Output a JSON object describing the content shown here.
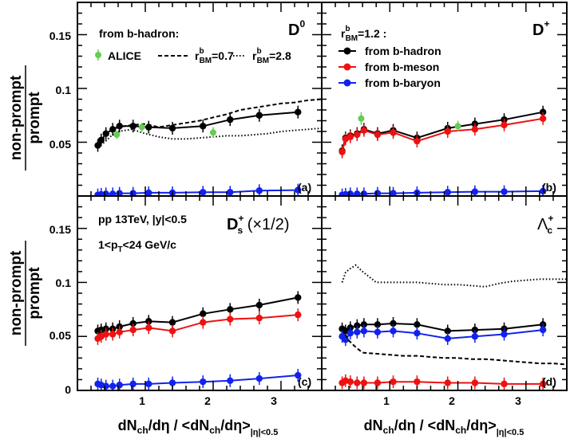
{
  "figure": {
    "ylabel_top": "non-prompt",
    "ylabel_bottom": "prompt",
    "xlabel": {
      "a": "dN",
      "a_sub": "ch",
      "b": "/dη / <dN",
      "b_sub": "ch",
      "c": "/dη>",
      "c_sub": "|η|<0.5"
    },
    "x_ticks": [
      "1",
      "2",
      "3"
    ],
    "y_ticks": [
      "0.05",
      "0.1",
      "0.15"
    ],
    "y_tick_zero": "0"
  },
  "colors": {
    "hadron": "#000000",
    "meson": "#ee1111",
    "baryon": "#1122ee",
    "alice": "#66cc55"
  },
  "legends": {
    "from_b_hadron_title": "from b-hadron:",
    "alice": "ALICE",
    "rbm07": {
      "r": "r",
      "sup": "b",
      "sub": "BM",
      "val": "=0.7"
    },
    "rbm28": {
      "r": "r",
      "sup": "b",
      "sub": "BM",
      "val": "=2.8"
    },
    "rbm12": {
      "r": "r",
      "sup": "b",
      "sub": "BM",
      "val": "=1.2 :"
    },
    "hadron": "from b-hadron",
    "meson": "from b-meson",
    "baryon": "from b-baryon",
    "pp_line": "pp 13TeV, |y|<0.5",
    "pt_line": {
      "a": "1<p",
      "sub": "T",
      "b": "<24 GeV/c"
    }
  },
  "panel_titles": {
    "a": {
      "main": "D",
      "sup": "0"
    },
    "b": {
      "main": "D",
      "sup": "+"
    },
    "c": {
      "main": "D",
      "sup": "+",
      "sub": "s",
      "extra": " (×1/2)"
    },
    "d": {
      "main": "Λ",
      "sup": "+",
      "sub": "c"
    }
  },
  "panel_tags": {
    "a": "(a)",
    "b": "(b)",
    "c": "(c)",
    "d": "(d)"
  },
  "chart_data": [
    {
      "panel": "a",
      "type": "line",
      "title": "D0",
      "xlim": [
        0,
        3.6
      ],
      "ylim": [
        0,
        0.18
      ],
      "x": [
        0.3,
        0.35,
        0.42,
        0.52,
        0.62,
        0.82,
        1.05,
        1.4,
        1.85,
        2.25,
        2.68,
        3.25
      ],
      "series": [
        {
          "name": "from b-hadron",
          "values": [
            0.047,
            0.052,
            0.058,
            0.062,
            0.065,
            0.065,
            0.064,
            0.063,
            0.065,
            0.071,
            0.075,
            0.078
          ]
        },
        {
          "name": "from b-baryon",
          "values": [
            0.001,
            0.0015,
            0.002,
            0.002,
            0.0025,
            0.0025,
            0.003,
            0.003,
            0.0035,
            0.0035,
            0.005,
            0.0055
          ]
        },
        {
          "name": "rBM=0.7",
          "style": "dashed",
          "x": [
            0.3,
            0.4,
            0.5,
            0.6,
            0.8,
            1.0,
            1.2,
            1.4,
            1.6,
            1.8,
            2.0,
            2.2,
            2.4,
            2.6,
            2.8,
            3.0,
            3.2,
            3.4,
            3.6
          ],
          "values": [
            0.047,
            0.055,
            0.061,
            0.064,
            0.066,
            0.067,
            0.064,
            0.066,
            0.068,
            0.07,
            0.073,
            0.076,
            0.08,
            0.082,
            0.084,
            0.086,
            0.087,
            0.089,
            0.09
          ]
        },
        {
          "name": "rBM=2.8",
          "style": "dotted",
          "x": [
            0.3,
            0.4,
            0.5,
            0.6,
            0.8,
            1.0,
            1.2,
            1.4,
            1.6,
            1.8,
            2.0,
            2.2,
            2.4,
            2.6,
            2.8,
            3.0,
            3.2,
            3.4,
            3.6
          ],
          "values": [
            0.046,
            0.05,
            0.056,
            0.06,
            0.062,
            0.058,
            0.055,
            0.053,
            0.053,
            0.054,
            0.055,
            0.056,
            0.056,
            0.057,
            0.058,
            0.06,
            0.061,
            0.062,
            0.063
          ]
        },
        {
          "name": "ALICE",
          "x": [
            0.58,
            0.95,
            2.0
          ],
          "values": [
            0.057,
            0.064,
            0.059
          ],
          "errors": [
            0.004,
            0.004,
            0.005
          ]
        }
      ]
    },
    {
      "panel": "b",
      "type": "line",
      "title": "D+",
      "xlim": [
        0,
        3.6
      ],
      "ylim": [
        0,
        0.18
      ],
      "x": [
        0.3,
        0.35,
        0.42,
        0.52,
        0.62,
        0.82,
        1.05,
        1.4,
        1.85,
        2.25,
        2.68,
        3.25
      ],
      "series": [
        {
          "name": "from b-hadron",
          "values": [
            0.042,
            0.054,
            0.056,
            0.058,
            0.062,
            0.058,
            0.061,
            0.054,
            0.063,
            0.067,
            0.071,
            0.078
          ]
        },
        {
          "name": "from b-meson",
          "values": [
            0.041,
            0.053,
            0.055,
            0.057,
            0.061,
            0.057,
            0.059,
            0.051,
            0.06,
            0.062,
            0.066,
            0.072
          ]
        },
        {
          "name": "from b-baryon",
          "values": [
            0.001,
            0.0015,
            0.002,
            0.002,
            0.002,
            0.0025,
            0.0025,
            0.003,
            0.0035,
            0.004,
            0.004,
            0.0045
          ]
        },
        {
          "name": "ALICE",
          "x": [
            0.58,
            2.0
          ],
          "values": [
            0.072,
            0.065
          ],
          "errors": [
            0.006,
            0.005
          ]
        }
      ]
    },
    {
      "panel": "c",
      "type": "line",
      "title": "Ds+ (×1/2)",
      "xlim": [
        0,
        3.6
      ],
      "ylim": [
        0,
        0.18
      ],
      "x": [
        0.3,
        0.35,
        0.42,
        0.52,
        0.62,
        0.82,
        1.05,
        1.4,
        1.85,
        2.25,
        2.68,
        3.25
      ],
      "series": [
        {
          "name": "from b-hadron",
          "values": [
            0.055,
            0.056,
            0.057,
            0.057,
            0.059,
            0.062,
            0.064,
            0.063,
            0.071,
            0.075,
            0.079,
            0.086
          ]
        },
        {
          "name": "from b-meson",
          "values": [
            0.048,
            0.05,
            0.052,
            0.052,
            0.054,
            0.056,
            0.058,
            0.055,
            0.063,
            0.066,
            0.067,
            0.07
          ]
        },
        {
          "name": "from b-baryon",
          "values": [
            0.006,
            0.005,
            0.004,
            0.004,
            0.005,
            0.006,
            0.006,
            0.007,
            0.008,
            0.009,
            0.011,
            0.014
          ]
        }
      ]
    },
    {
      "panel": "d",
      "type": "line",
      "title": "Λc+",
      "xlim": [
        0,
        3.6
      ],
      "ylim": [
        0,
        0.18
      ],
      "x": [
        0.3,
        0.35,
        0.42,
        0.52,
        0.62,
        0.82,
        1.05,
        1.4,
        1.85,
        2.25,
        2.68,
        3.25
      ],
      "series": [
        {
          "name": "from b-hadron",
          "values": [
            0.057,
            0.055,
            0.058,
            0.06,
            0.061,
            0.061,
            0.062,
            0.061,
            0.055,
            0.056,
            0.057,
            0.061
          ]
        },
        {
          "name": "from b-meson",
          "values": [
            0.007,
            0.009,
            0.008,
            0.007,
            0.007,
            0.007,
            0.008,
            0.008,
            0.007,
            0.007,
            0.006,
            0.006
          ]
        },
        {
          "name": "from b-baryon",
          "values": [
            0.05,
            0.047,
            0.053,
            0.054,
            0.055,
            0.054,
            0.055,
            0.053,
            0.048,
            0.05,
            0.052,
            0.056
          ]
        },
        {
          "name": "rBM=0.7",
          "style": "dashed",
          "x": [
            0.3,
            0.4,
            0.5,
            0.6,
            0.8,
            1.0,
            1.2,
            1.4,
            1.6,
            1.8,
            2.0,
            2.2,
            2.4,
            2.6,
            2.8,
            3.0,
            3.2,
            3.4,
            3.6
          ],
          "values": [
            0.057,
            0.046,
            0.04,
            0.035,
            0.034,
            0.033,
            0.032,
            0.032,
            0.031,
            0.03,
            0.03,
            0.029,
            0.029,
            0.028,
            0.027,
            0.026,
            0.025,
            0.025,
            0.024
          ]
        },
        {
          "name": "rBM=2.8",
          "style": "dotted",
          "x": [
            0.3,
            0.35,
            0.4,
            0.5,
            0.6,
            0.8,
            1.0,
            1.2,
            1.4,
            1.6,
            1.8,
            2.0,
            2.2,
            2.4,
            2.6,
            2.8,
            3.0,
            3.2,
            3.4,
            3.6
          ],
          "values": [
            0.1,
            0.109,
            0.112,
            0.116,
            0.11,
            0.1,
            0.1,
            0.1,
            0.1,
            0.099,
            0.098,
            0.098,
            0.097,
            0.096,
            0.099,
            0.101,
            0.102,
            0.103,
            0.103,
            0.103
          ]
        }
      ]
    }
  ]
}
